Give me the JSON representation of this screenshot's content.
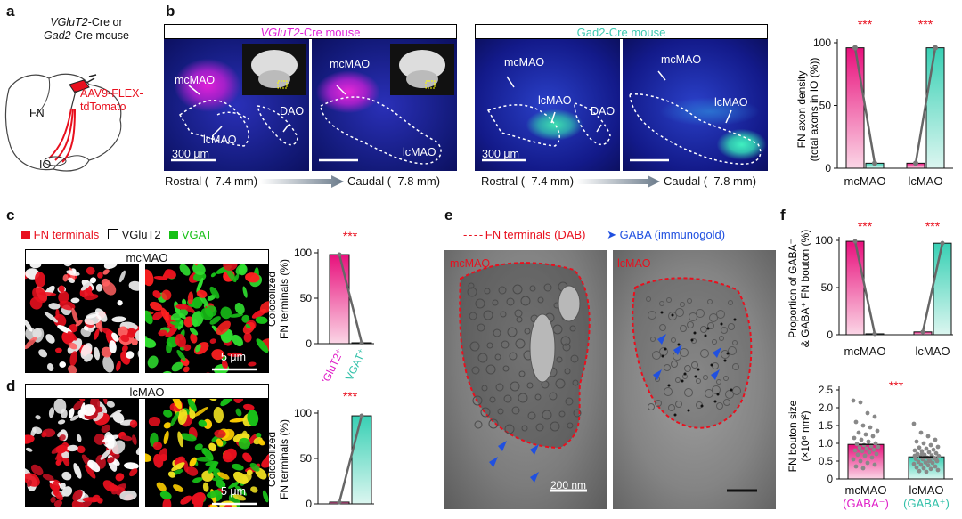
{
  "panels": {
    "a": "a",
    "b": "b",
    "c": "c",
    "d": "d",
    "e": "e",
    "f": "f"
  },
  "a": {
    "line1_italic": "VGluT2",
    "line1_rest": "-Cre or",
    "line2_italic": "Gad2",
    "line2_rest": "-Cre mouse",
    "virus_line1": "AAV9-FLEX-",
    "virus_line2": "tdTomato",
    "fn": "FN",
    "io": "IO",
    "colors": {
      "virus": "#e8101e"
    }
  },
  "b": {
    "header_left_italic": "VGluT2",
    "header_left_rest": "-Cre mouse",
    "header_right": "Gad2-Cre mouse",
    "labels": {
      "mcMAO": "mcMAO",
      "lcMAO": "lcMAO",
      "DAO": "DAO"
    },
    "scale": "300 μm",
    "rostral": "Rostral (–7.4 mm)",
    "caudal": "Caudal (–7.8 mm)",
    "colors": {
      "vglut": "#e020d8",
      "gad": "#3ee0c0",
      "dapi": "#1530d0"
    }
  },
  "c": {
    "legend": {
      "fn": "FN terminals",
      "vglut2": "VGluT2",
      "vgat": "VGAT"
    },
    "region": "mcMAO",
    "scale": "5 μm"
  },
  "d": {
    "region": "lcMAO",
    "scale": "5 μm"
  },
  "e": {
    "legend_fn": "FN terminals (DAB)",
    "legend_gaba": "GABA (immunogold)",
    "left_label": "mcMAO",
    "right_label": "lcMAO",
    "scale": "200 nm"
  },
  "f": {
    "scatter_ylabel1": "FN bouton size",
    "scatter_ylabel2": "(×10⁶ nm²)",
    "cat1_line1": "mcMAO",
    "cat1_line2": "(GABA⁻)",
    "cat2_line1": "lcMAO",
    "cat2_line2": "(GABA⁺)"
  },
  "chart_data": [
    {
      "id": "b-bar",
      "type": "bar",
      "categories": [
        "mcMAO",
        "lcMAO"
      ],
      "series": [
        {
          "name": "VGluT2-Cre",
          "values": [
            96,
            4
          ],
          "color": "#e0188c"
        },
        {
          "name": "Gad2-Cre",
          "values": [
            4,
            96
          ],
          "color": "#38c8b0"
        }
      ],
      "ylabel": "FN axon density (total axons in IO (%))",
      "ylim": [
        0,
        100
      ],
      "yticks": [
        0,
        50,
        100
      ],
      "significance": [
        "***",
        "***"
      ]
    },
    {
      "id": "c-bar",
      "type": "bar",
      "categories": [
        "VGluT2⁺",
        "VGAT⁺"
      ],
      "values": [
        98,
        1
      ],
      "ylabel": "Colocolized FN terminals (%)",
      "ylim": [
        0,
        100
      ],
      "yticks": [
        0,
        50,
        100
      ],
      "significance": "***"
    },
    {
      "id": "d-bar",
      "type": "bar",
      "categories": [
        "VGluT2⁺",
        "VGAT⁺"
      ],
      "values": [
        2,
        97
      ],
      "ylabel": "Colocolized FN terminals (%)",
      "ylim": [
        0,
        100
      ],
      "yticks": [
        0,
        50,
        100
      ],
      "significance": "***"
    },
    {
      "id": "f-bar",
      "type": "bar",
      "categories": [
        "mcMAO",
        "lcMAO"
      ],
      "series": [
        {
          "name": "GABA⁻",
          "values": [
            99,
            3
          ]
        },
        {
          "name": "GABA⁺",
          "values": [
            1,
            97
          ]
        }
      ],
      "ylabel": "Proportion of GABA⁻ & GABA⁺ FN bouton (%)",
      "ylim": [
        0,
        100
      ],
      "yticks": [
        0,
        50,
        100
      ],
      "significance": [
        "***",
        "***"
      ]
    },
    {
      "id": "f-scatter",
      "type": "scatter",
      "categories": [
        "mcMAO (GABA⁻)",
        "lcMAO (GABA⁺)"
      ],
      "means": [
        0.97,
        0.62
      ],
      "ylabel": "FN bouton size (×10⁶ nm²)",
      "ylim": [
        0,
        2.5
      ],
      "yticks": [
        0,
        0.5,
        1.0,
        1.5,
        2.0,
        2.5
      ],
      "yticklabels": [
        "0",
        "0.5",
        "1.0",
        "1.5",
        "2.0",
        "2.5"
      ],
      "points_group1": [
        2.2,
        2.15,
        1.85,
        1.75,
        1.6,
        1.5,
        1.45,
        1.35,
        1.3,
        1.25,
        1.2,
        1.15,
        1.1,
        1.05,
        1.0,
        0.98,
        0.95,
        0.92,
        0.9,
        0.88,
        0.85,
        0.82,
        0.8,
        0.78,
        0.75,
        0.7,
        0.68,
        0.65,
        0.6,
        0.55,
        0.5,
        0.45,
        0.4,
        0.35,
        0.3
      ],
      "points_group2": [
        1.55,
        1.3,
        1.2,
        1.1,
        1.05,
        1.0,
        0.95,
        0.9,
        0.88,
        0.85,
        0.82,
        0.8,
        0.78,
        0.75,
        0.72,
        0.7,
        0.68,
        0.66,
        0.64,
        0.62,
        0.6,
        0.58,
        0.56,
        0.55,
        0.52,
        0.5,
        0.48,
        0.46,
        0.45,
        0.42,
        0.4,
        0.38,
        0.35,
        0.32,
        0.3,
        0.28,
        0.25,
        0.22,
        0.2,
        0.6,
        0.65,
        0.7,
        0.5,
        0.55
      ],
      "significance": "***"
    }
  ]
}
